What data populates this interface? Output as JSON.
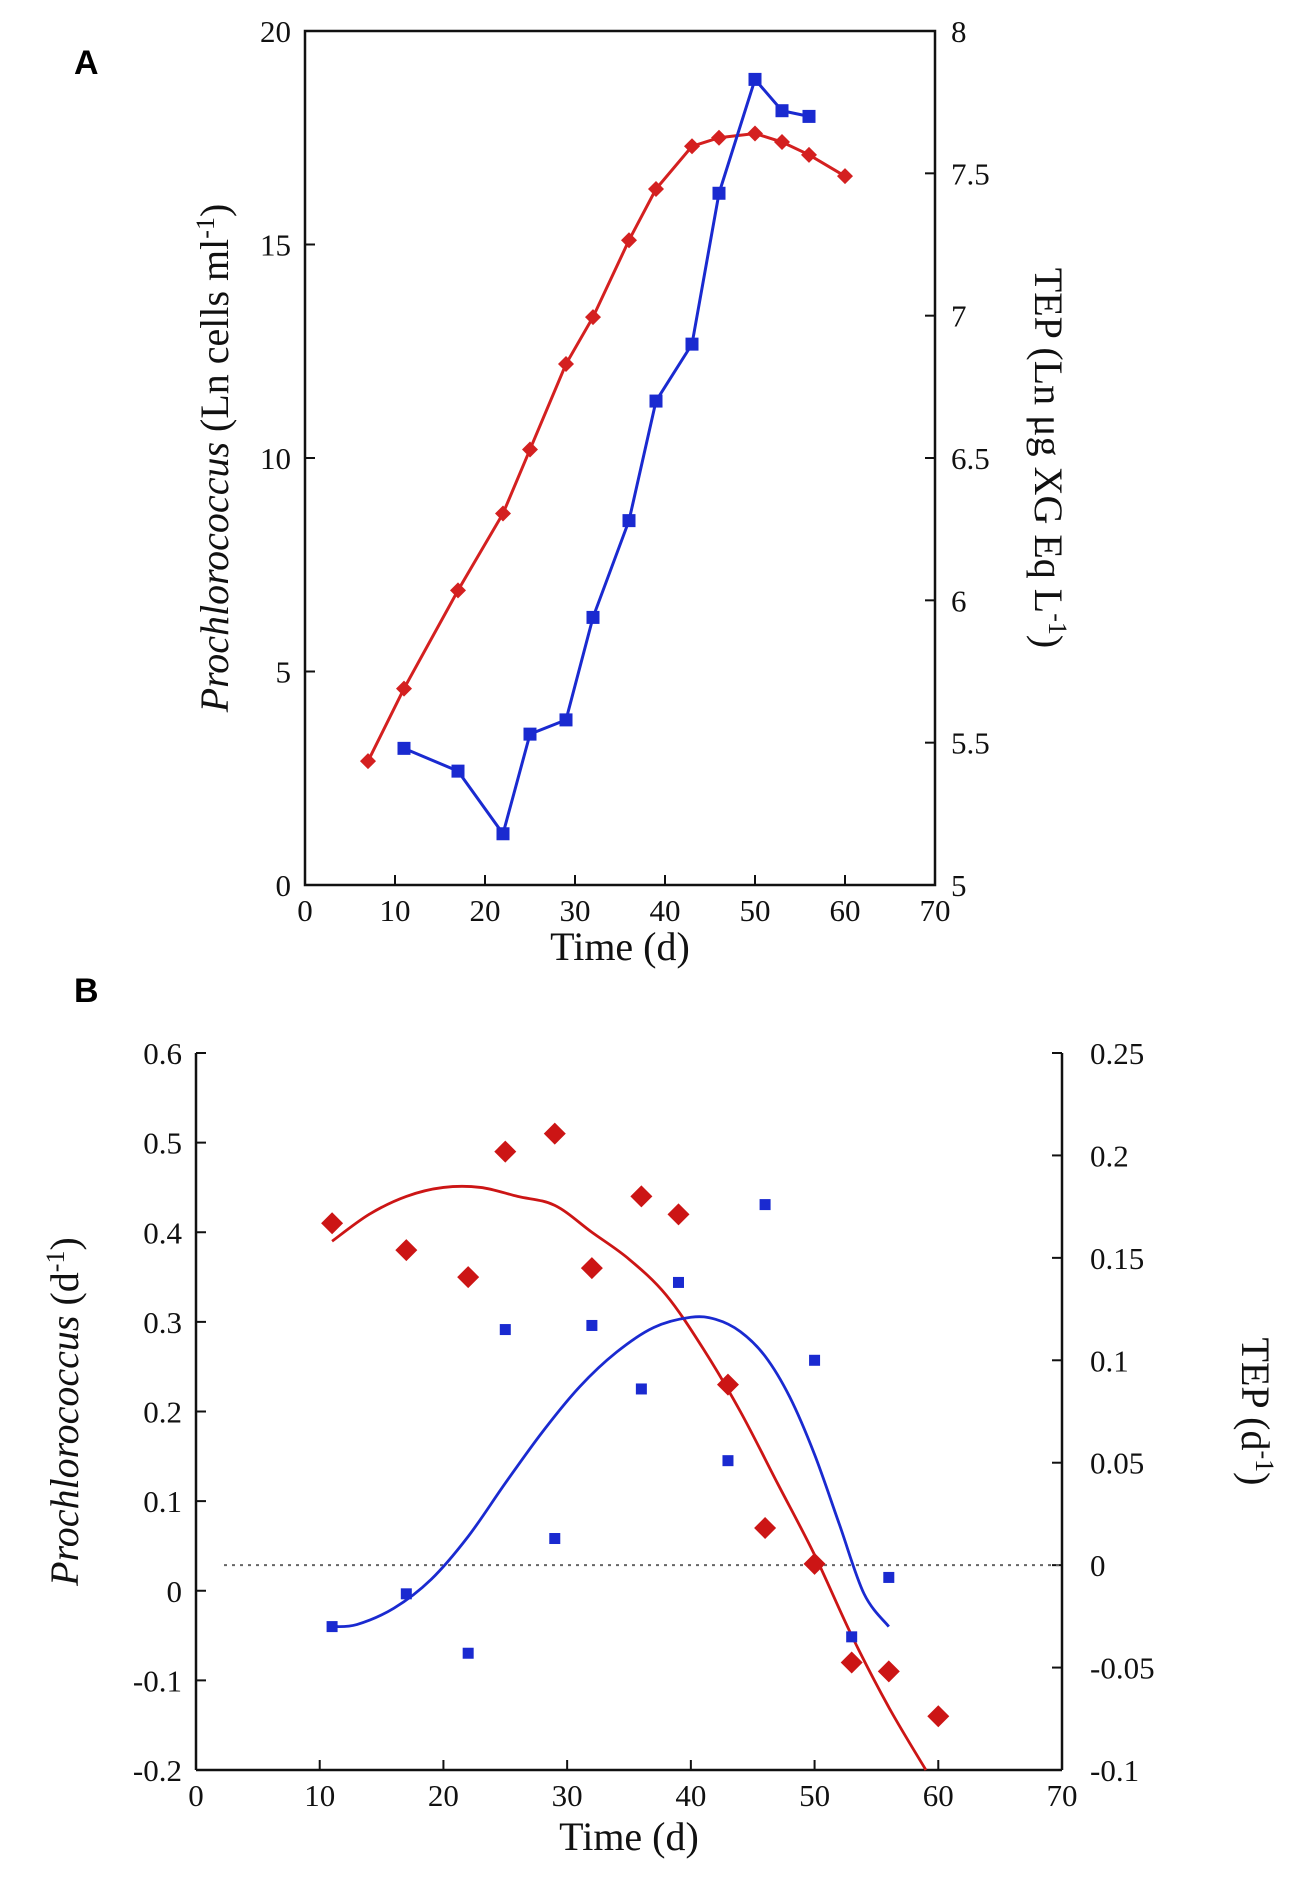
{
  "chart_data": [
    {
      "panel": "A",
      "type": "line",
      "xlabel": "Time (d)",
      "ylabel_left_italic": "Prochlorococcus",
      "ylabel_left_rest": " (Ln cells ml",
      "ylabel_left_sup": "-1",
      "ylabel_left_close": ")",
      "ylabel_right": "TEP (Ln μg XG Eq L",
      "ylabel_right_sup": "-1",
      "ylabel_right_close": ")",
      "xlim": [
        0,
        70
      ],
      "ylim_left": [
        0,
        20
      ],
      "ylim_right": [
        5,
        8
      ],
      "x_ticks": [
        "0",
        "10",
        "20",
        "30",
        "40",
        "50",
        "60",
        "70"
      ],
      "y_left_ticks": [
        "0",
        "5",
        "10",
        "15",
        "20"
      ],
      "y_right_ticks": [
        "5",
        "5.5",
        "6",
        "6.5",
        "7",
        "7.5",
        "8"
      ],
      "series": [
        {
          "name": "Prochlorococcus",
          "axis": "left",
          "color": "#d42020",
          "marker": "diamond",
          "x": [
            7,
            11,
            17,
            22,
            25,
            29,
            32,
            36,
            39,
            43,
            46,
            50,
            53,
            56,
            60
          ],
          "y": [
            2.9,
            4.6,
            6.9,
            8.7,
            10.2,
            12.2,
            13.3,
            15.1,
            16.3,
            17.3,
            17.5,
            17.6,
            17.4,
            17.1,
            16.6
          ]
        },
        {
          "name": "TEP",
          "axis": "right",
          "color": "#1a2ad0",
          "marker": "square",
          "x": [
            11,
            17,
            22,
            25,
            29,
            32,
            36,
            39,
            43,
            46,
            50,
            53,
            56
          ],
          "y": [
            5.48,
            5.4,
            5.18,
            5.53,
            5.58,
            5.94,
            6.28,
            6.7,
            6.9,
            7.43,
            7.83,
            7.72,
            7.7
          ]
        }
      ]
    },
    {
      "panel": "B",
      "type": "scatter",
      "xlabel": "Time (d)",
      "ylabel_left_italic": "Prochlorococcus",
      "ylabel_left_rest": " (d",
      "ylabel_left_sup": "-1",
      "ylabel_left_close": ")",
      "ylabel_right": "TEP (d",
      "ylabel_right_sup": "-1",
      "ylabel_right_close": ")",
      "xlim": [
        0,
        70
      ],
      "ylim_left": [
        -0.2,
        0.6
      ],
      "ylim_right": [
        -0.1,
        0.25
      ],
      "x_ticks": [
        "0",
        "10",
        "20",
        "30",
        "40",
        "50",
        "60",
        "70"
      ],
      "y_left_ticks": [
        "-0.2",
        "-0.1",
        "0",
        "0.1",
        "0.2",
        "0.3",
        "0.4",
        "0.5",
        "0.6"
      ],
      "y_right_ticks": [
        "-0.1",
        "-0.05",
        "0",
        "0.05",
        "0.1",
        "0.15",
        "0.2",
        "0.25"
      ],
      "zero_line_right": 0,
      "series": [
        {
          "name": "Prochlorococcus",
          "axis": "left",
          "color": "#cc1515",
          "marker": "diamond",
          "x": [
            11,
            17,
            22,
            25,
            29,
            32,
            36,
            39,
            43,
            46,
            50,
            53,
            56,
            60
          ],
          "y": [
            0.41,
            0.38,
            0.35,
            0.49,
            0.51,
            0.36,
            0.44,
            0.42,
            0.23,
            0.07,
            0.03,
            -0.08,
            -0.09,
            -0.14
          ]
        },
        {
          "name": "TEP",
          "axis": "right",
          "color": "#1a2ad0",
          "marker": "square",
          "x": [
            11,
            17,
            22,
            25,
            29,
            32,
            36,
            39,
            43,
            46,
            50,
            53,
            56
          ],
          "y": [
            -0.03,
            -0.014,
            -0.043,
            0.115,
            0.013,
            0.117,
            0.086,
            0.138,
            0.051,
            0.176,
            0.1,
            -0.035,
            -0.006
          ]
        }
      ],
      "fits": [
        {
          "name": "Prochlorococcus fit",
          "axis": "left",
          "color": "#cc1515",
          "x": [
            11,
            14,
            17,
            20,
            23,
            26,
            29,
            32,
            35,
            38,
            41,
            44,
            47,
            50,
            53,
            56,
            59
          ],
          "y": [
            0.39,
            0.42,
            0.44,
            0.45,
            0.45,
            0.44,
            0.43,
            0.4,
            0.37,
            0.33,
            0.27,
            0.2,
            0.12,
            0.04,
            -0.05,
            -0.13,
            -0.2
          ]
        },
        {
          "name": "TEP fit",
          "axis": "right",
          "color": "#1a2ad0",
          "x": [
            11,
            13,
            16,
            19,
            22,
            25,
            28,
            31,
            34,
            37,
            40,
            42,
            44,
            46,
            48,
            50,
            52,
            54,
            56
          ],
          "y": [
            -0.03,
            -0.029,
            -0.021,
            -0.007,
            0.014,
            0.04,
            0.065,
            0.087,
            0.104,
            0.116,
            0.121,
            0.12,
            0.114,
            0.102,
            0.082,
            0.054,
            0.02,
            -0.014,
            -0.03
          ]
        }
      ]
    }
  ],
  "labels": {
    "panel_a": "A",
    "panel_b": "B"
  }
}
